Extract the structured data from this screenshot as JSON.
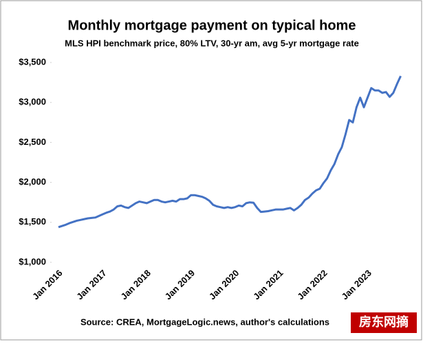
{
  "chart_data": {
    "type": "line",
    "title": "Monthly mortgage payment on typical home",
    "subtitle": "MLS HPI benchmark price, 80% LTV, 30-yr am, avg 5-yr mortgage rate",
    "source": "Source: CREA, MortgageLogic.news, author's calculations",
    "watermark": "房东网摘",
    "categories": [
      "Jan 2016",
      null,
      null,
      null,
      null,
      null,
      null,
      null,
      null,
      null,
      null,
      null,
      "Jan 2017",
      null,
      null,
      null,
      null,
      null,
      null,
      null,
      null,
      null,
      null,
      null,
      "Jan 2018",
      null,
      null,
      null,
      null,
      null,
      null,
      null,
      null,
      null,
      null,
      null,
      "Jan 2019",
      null,
      null,
      null,
      null,
      null,
      null,
      null,
      null,
      null,
      null,
      null,
      "Jan 2020",
      null,
      null,
      null,
      null,
      null,
      null,
      null,
      null,
      null,
      null,
      null,
      "Jan 2021",
      null,
      null,
      null,
      null,
      null,
      null,
      null,
      null,
      null,
      null,
      null,
      "Jan 2022",
      null,
      null,
      null,
      null,
      null,
      null,
      null,
      null,
      null,
      null,
      null,
      "Jan 2023",
      null,
      null,
      null,
      null,
      null,
      null,
      null,
      null,
      null
    ],
    "series": [
      {
        "name": "Monthly payment",
        "color": "#4472c4",
        "values": [
          1440,
          1455,
          1470,
          1490,
          1505,
          1520,
          1530,
          1540,
          1550,
          1555,
          1560,
          1580,
          1600,
          1620,
          1635,
          1660,
          1700,
          1710,
          1690,
          1680,
          1710,
          1740,
          1760,
          1750,
          1740,
          1760,
          1780,
          1780,
          1760,
          1750,
          1760,
          1770,
          1760,
          1790,
          1790,
          1800,
          1840,
          1840,
          1830,
          1820,
          1800,
          1770,
          1720,
          1700,
          1690,
          1680,
          1690,
          1680,
          1690,
          1710,
          1700,
          1740,
          1750,
          1745,
          1680,
          1630,
          1635,
          1640,
          1650,
          1660,
          1660,
          1660,
          1670,
          1680,
          1650,
          1680,
          1720,
          1780,
          1810,
          1860,
          1900,
          1920,
          1990,
          2050,
          2150,
          2230,
          2350,
          2440,
          2600,
          2780,
          2750,
          2940,
          3060,
          2940,
          3060,
          3180,
          3150,
          3150,
          3120,
          3130,
          3070,
          3120,
          3230,
          3330
        ]
      }
    ],
    "ylim": [
      1000,
      3500
    ],
    "yticks": [
      {
        "value": 1000,
        "label": "$1,000"
      },
      {
        "value": 1500,
        "label": "$1,500"
      },
      {
        "value": 2000,
        "label": "$2,000"
      },
      {
        "value": 2500,
        "label": "$2,500"
      },
      {
        "value": 3000,
        "label": "$3,000"
      },
      {
        "value": 3500,
        "label": "$3,500"
      }
    ],
    "grid": false
  }
}
